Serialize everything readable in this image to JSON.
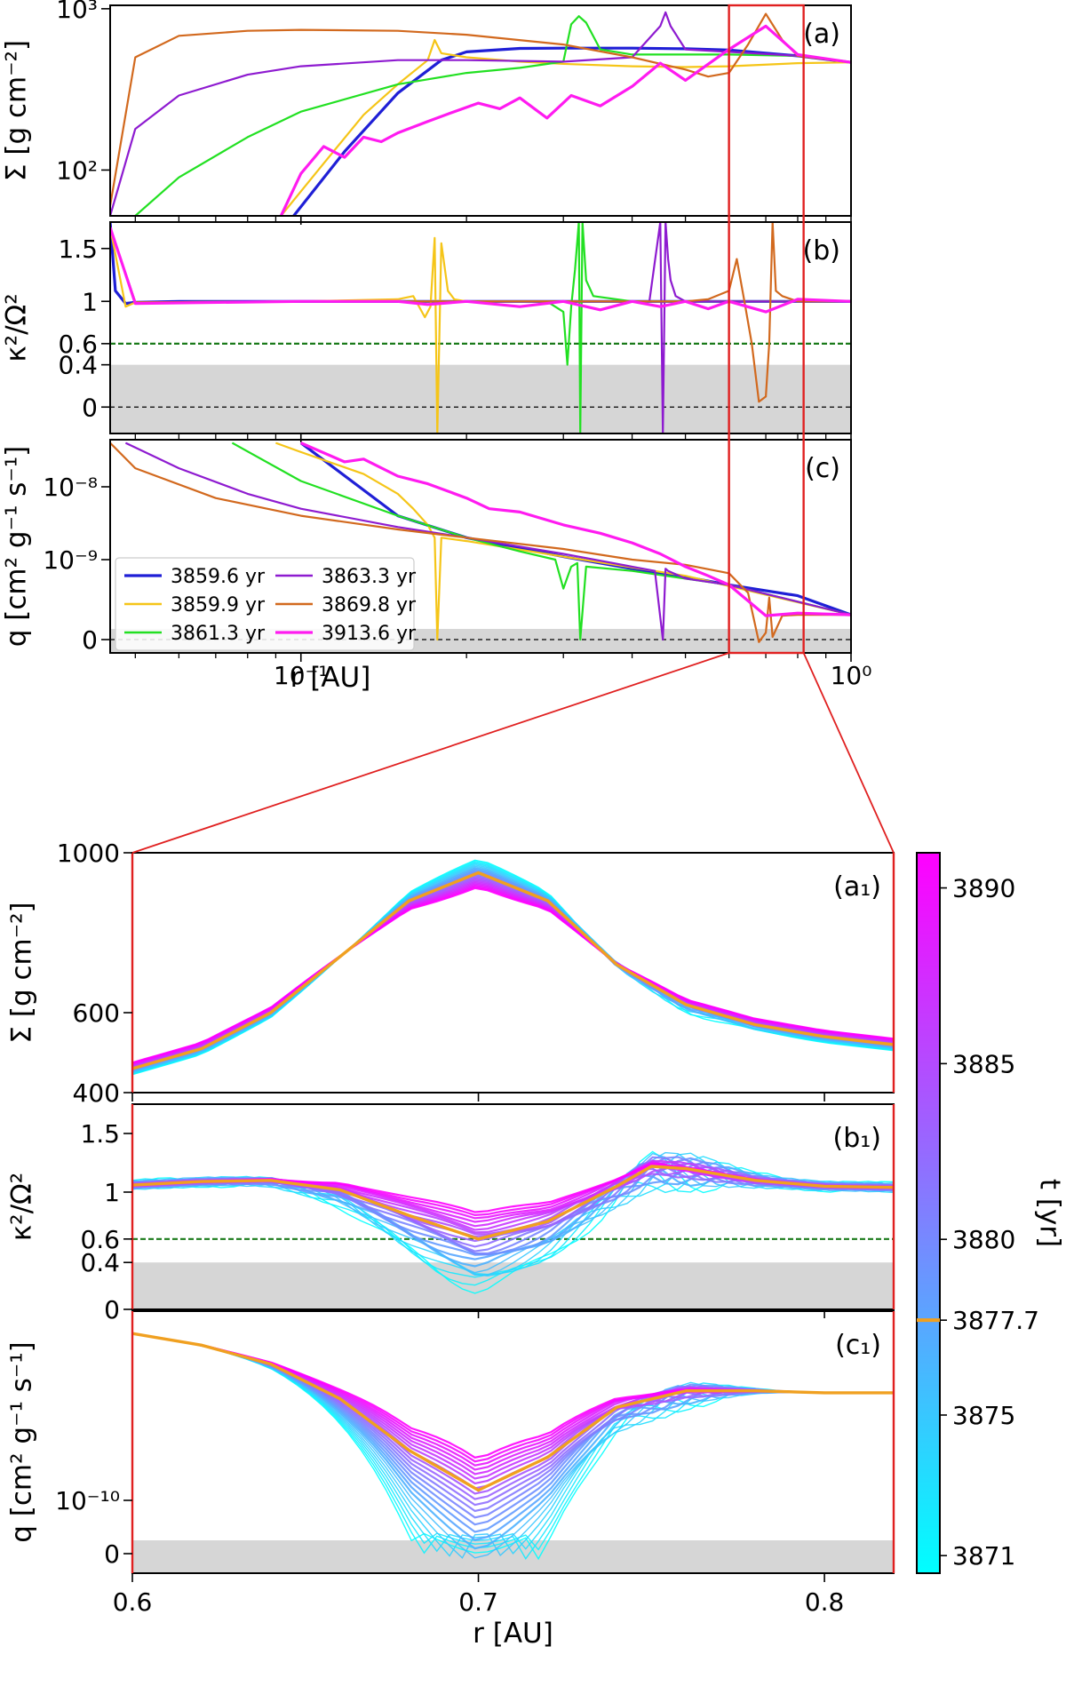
{
  "chart_data": [
    {
      "id": "a",
      "type": "line",
      "panel_label": "(a)",
      "ylabel": "Σ [g cm⁻²]",
      "yscale": "log",
      "xscale": "log",
      "xlim": [
        0.045,
        1.0
      ],
      "ylim": [
        52,
        1050
      ],
      "yticks": [
        {
          "value": 100,
          "label": "10²"
        },
        {
          "value": 1000,
          "label": "10³"
        }
      ],
      "series": [
        {
          "name": "3859.6 yr",
          "color": "#1f1fd6",
          "x": [
            0.097,
            0.12,
            0.15,
            0.18,
            0.2,
            0.25,
            0.3,
            0.4,
            0.5,
            0.6,
            0.8,
            1.0
          ],
          "y": [
            52,
            130,
            300,
            480,
            540,
            568,
            570,
            570,
            565,
            555,
            510,
            465
          ]
        },
        {
          "name": "3859.9 yr",
          "color": "#f5c518",
          "x": [
            0.092,
            0.11,
            0.13,
            0.15,
            0.17,
            0.175,
            0.18,
            0.2,
            0.25,
            0.3,
            0.4,
            0.5,
            0.6,
            0.8,
            1.0
          ],
          "y": [
            52,
            110,
            220,
            340,
            480,
            640,
            530,
            500,
            470,
            455,
            440,
            435,
            440,
            460,
            465
          ]
        },
        {
          "name": "3861.3 yr",
          "color": "#22e022",
          "x": [
            0.05,
            0.06,
            0.08,
            0.1,
            0.15,
            0.2,
            0.25,
            0.3,
            0.31,
            0.32,
            0.33,
            0.35,
            0.4,
            0.5,
            0.6,
            0.8,
            1.0
          ],
          "y": [
            52,
            90,
            160,
            230,
            340,
            400,
            430,
            470,
            800,
            900,
            820,
            560,
            520,
            520,
            520,
            510,
            465
          ]
        },
        {
          "name": "3863.3 yr",
          "color": "#8e1bd0",
          "x": [
            0.045,
            0.05,
            0.06,
            0.08,
            0.1,
            0.15,
            0.2,
            0.3,
            0.4,
            0.45,
            0.46,
            0.47,
            0.5,
            0.6,
            0.8,
            1.0
          ],
          "y": [
            52,
            180,
            290,
            390,
            440,
            480,
            480,
            470,
            500,
            780,
            950,
            780,
            560,
            540,
            510,
            465
          ]
        },
        {
          "name": "3869.8 yr",
          "color": "#d2691e",
          "x": [
            0.045,
            0.05,
            0.06,
            0.08,
            0.1,
            0.15,
            0.2,
            0.3,
            0.4,
            0.5,
            0.55,
            0.6,
            0.65,
            0.7,
            0.75,
            0.8,
            1.0
          ],
          "y": [
            60,
            500,
            680,
            730,
            740,
            730,
            690,
            600,
            500,
            420,
            380,
            400,
            600,
            930,
            640,
            510,
            465
          ]
        },
        {
          "name": "3913.6 yr",
          "color": "#ff1bf0",
          "x": [
            0.092,
            0.1,
            0.11,
            0.12,
            0.13,
            0.14,
            0.15,
            0.17,
            0.19,
            0.21,
            0.23,
            0.25,
            0.28,
            0.31,
            0.35,
            0.4,
            0.45,
            0.5,
            0.6,
            0.7,
            0.8,
            1.0
          ],
          "y": [
            52,
            95,
            140,
            120,
            160,
            150,
            170,
            200,
            230,
            260,
            240,
            280,
            210,
            290,
            250,
            330,
            460,
            360,
            560,
            780,
            520,
            465
          ]
        }
      ]
    },
    {
      "id": "b",
      "type": "line",
      "panel_label": "(b)",
      "ylabel": "κ²/Ω²",
      "xscale": "log",
      "xlim": [
        0.045,
        1.0
      ],
      "ylim": [
        -0.25,
        1.75
      ],
      "yticks": [
        {
          "value": 0,
          "label": "0"
        },
        {
          "value": 0.4,
          "label": "0.4"
        },
        {
          "value": 0.6,
          "label": "0.6"
        },
        {
          "value": 1,
          "label": "1"
        },
        {
          "value": 1.5,
          "label": "1.5"
        }
      ],
      "reference_line": 0.6,
      "shaded_below": 0.4,
      "series": [
        {
          "name": "3859.6 yr",
          "color": "#1f1fd6",
          "x": [
            0.045,
            0.046,
            0.048,
            0.05,
            0.06,
            0.1,
            0.2,
            0.4,
            0.6,
            1.0
          ],
          "y": [
            1.75,
            1.1,
            0.98,
            0.99,
            1.0,
            1.0,
            1.0,
            1.0,
            1.0,
            1.0
          ]
        },
        {
          "name": "3859.9 yr",
          "color": "#f5c518",
          "x": [
            0.045,
            0.048,
            0.05,
            0.1,
            0.15,
            0.16,
            0.168,
            0.172,
            0.175,
            0.177,
            0.18,
            0.185,
            0.19,
            0.2,
            0.3,
            1.0
          ],
          "y": [
            1.7,
            0.95,
            0.99,
            1.0,
            1.02,
            1.05,
            0.85,
            0.95,
            1.6,
            -0.25,
            1.55,
            1.1,
            1.02,
            1.0,
            1.0,
            1.0
          ]
        },
        {
          "name": "3861.3 yr",
          "color": "#22e022",
          "x": [
            0.045,
            0.05,
            0.1,
            0.28,
            0.3,
            0.305,
            0.31,
            0.315,
            0.32,
            0.322,
            0.325,
            0.33,
            0.34,
            0.4,
            1.0
          ],
          "y": [
            1.7,
            0.99,
            1.0,
            1.0,
            0.9,
            0.4,
            0.95,
            1.3,
            1.75,
            -0.25,
            1.75,
            1.2,
            1.05,
            1.0,
            1.0
          ]
        },
        {
          "name": "3863.3 yr",
          "color": "#8e1bd0",
          "x": [
            0.045,
            0.05,
            0.1,
            0.4,
            0.43,
            0.45,
            0.455,
            0.46,
            0.465,
            0.47,
            0.48,
            0.5,
            0.55,
            1.0
          ],
          "y": [
            1.7,
            0.99,
            1.0,
            1.0,
            1.0,
            1.75,
            -0.25,
            1.75,
            1.4,
            1.2,
            1.05,
            1.0,
            1.0,
            1.0
          ]
        },
        {
          "name": "3869.8 yr",
          "color": "#d2691e",
          "x": [
            0.045,
            0.05,
            0.1,
            0.5,
            0.55,
            0.6,
            0.62,
            0.64,
            0.66,
            0.68,
            0.7,
            0.71,
            0.72,
            0.73,
            0.75,
            0.8,
            1.0
          ],
          "y": [
            1.7,
            0.99,
            1.0,
            1.0,
            1.02,
            1.1,
            1.4,
            1.0,
            0.6,
            0.05,
            0.1,
            0.6,
            1.75,
            1.1,
            1.05,
            1.0,
            1.0
          ]
        },
        {
          "name": "3913.6 yr",
          "color": "#ff1bf0",
          "x": [
            0.045,
            0.05,
            0.1,
            0.15,
            0.17,
            0.2,
            0.25,
            0.3,
            0.35,
            0.4,
            0.45,
            0.5,
            0.55,
            0.6,
            0.7,
            0.8,
            1.0
          ],
          "y": [
            1.7,
            0.98,
            1.0,
            1.0,
            0.97,
            1.0,
            0.95,
            1.0,
            0.92,
            1.0,
            0.95,
            1.0,
            0.93,
            1.0,
            0.9,
            1.02,
            1.0
          ]
        }
      ]
    },
    {
      "id": "c",
      "type": "line",
      "panel_label": "(c)",
      "ylabel": "q [cm² g⁻¹ s⁻¹]",
      "xlabel": "r [AU]",
      "xscale": "log",
      "xlim": [
        0.045,
        1.0
      ],
      "xticks": [
        {
          "value": 0.1,
          "label": "10⁻¹"
        },
        {
          "value": 1.0,
          "label": "10⁰"
        }
      ],
      "yticks": [
        {
          "value": 0,
          "label": "0"
        },
        {
          "value": 1e-09,
          "label": "10⁻⁹"
        },
        {
          "value": 1e-08,
          "label": "10⁻⁸"
        }
      ],
      "legend_position": "lower-left",
      "series": [
        {
          "name": "3859.6 yr",
          "color": "#1f1fd6",
          "x": [
            0.1,
            0.15,
            0.2,
            0.3,
            0.4,
            0.5,
            0.6,
            0.8,
            1.0
          ],
          "y": [
            4e-08,
            4e-09,
            2e-09,
            1.1e-09,
            7.5e-10,
            5.8e-10,
            4.5e-10,
            3.2e-10,
            2.6e-10
          ]
        },
        {
          "name": "3859.9 yr",
          "color": "#f5c518",
          "x": [
            0.09,
            0.1,
            0.13,
            0.15,
            0.16,
            0.17,
            0.175,
            0.177,
            0.18,
            0.2,
            0.3,
            0.5,
            1.0
          ],
          "y": [
            4e-08,
            3e-08,
            1.5e-08,
            8e-09,
            5e-09,
            3e-09,
            2e-09,
            0,
            2e-09,
            1.8e-09,
            1.1e-09,
            6e-10,
            2.6e-10
          ]
        },
        {
          "name": "3861.3 yr",
          "color": "#22e022",
          "x": [
            0.075,
            0.1,
            0.15,
            0.2,
            0.25,
            0.29,
            0.3,
            0.31,
            0.318,
            0.322,
            0.33,
            0.4,
            0.6,
            1.0
          ],
          "y": [
            4e-08,
            1.2e-08,
            4e-09,
            2e-09,
            1.3e-09,
            1e-09,
            4e-10,
            8e-10,
            9e-10,
            0,
            8e-10,
            7e-10,
            4.5e-10,
            2.6e-10
          ]
        },
        {
          "name": "3863.3 yr",
          "color": "#8e1bd0",
          "x": [
            0.048,
            0.06,
            0.08,
            0.1,
            0.15,
            0.2,
            0.3,
            0.4,
            0.44,
            0.455,
            0.46,
            0.465,
            0.5,
            0.6,
            1.0
          ],
          "y": [
            4e-08,
            1.8e-08,
            8e-09,
            5e-09,
            2.8e-09,
            2e-09,
            1.2e-09,
            8e-10,
            7e-10,
            0,
            7.5e-10,
            7e-10,
            5.5e-10,
            4.5e-10,
            2.6e-10
          ]
        },
        {
          "name": "3869.8 yr",
          "color": "#d2691e",
          "x": [
            0.045,
            0.05,
            0.07,
            0.1,
            0.15,
            0.2,
            0.3,
            0.4,
            0.5,
            0.6,
            0.65,
            0.68,
            0.7,
            0.71,
            0.72,
            0.75,
            0.8,
            1.0
          ],
          "y": [
            4e-08,
            1.8e-08,
            7e-09,
            4e-09,
            2.6e-09,
            2e-09,
            1.4e-09,
            1e-09,
            8.5e-10,
            6.5e-10,
            3.5e-10,
            8e-11,
            1.2e-10,
            3e-10,
            1e-10,
            2.5e-10,
            2.6e-10,
            2.6e-10
          ]
        },
        {
          "name": "3913.6 yr",
          "color": "#ff1bf0",
          "x": [
            0.1,
            0.12,
            0.13,
            0.15,
            0.17,
            0.2,
            0.22,
            0.25,
            0.3,
            0.35,
            0.4,
            0.45,
            0.5,
            0.55,
            0.6,
            0.7,
            0.8,
            1.0
          ],
          "y": [
            4e-08,
            2.2e-08,
            2.4e-08,
            1.4e-08,
            1.1e-08,
            7e-09,
            5e-09,
            4.5e-09,
            3e-09,
            2.3e-09,
            1.7e-09,
            1.2e-09,
            8e-10,
            6e-10,
            4.5e-10,
            2.5e-10,
            2.8e-10,
            2.6e-10
          ]
        }
      ]
    },
    {
      "id": "a1",
      "type": "line",
      "panel_label": "(a₁)",
      "ylabel": "Σ [g cm⁻²]",
      "xlim": [
        0.6,
        0.82
      ],
      "ylim": [
        400,
        1000
      ],
      "yticks": [
        {
          "value": 400,
          "label": "400"
        },
        {
          "value": 600,
          "label": "600"
        },
        {
          "value": 1000,
          "label": "1000"
        }
      ],
      "highlight_series": {
        "name": "3877.7",
        "color": "#f0a020",
        "x": [
          0.6,
          0.62,
          0.64,
          0.66,
          0.68,
          0.7,
          0.72,
          0.74,
          0.76,
          0.78,
          0.8,
          0.82
        ],
        "y": [
          460,
          510,
          600,
          740,
          880,
          950,
          880,
          720,
          620,
          570,
          540,
          520
        ]
      },
      "color_range": {
        "tmin": 3871,
        "tmax": 3890
      }
    },
    {
      "id": "b1",
      "type": "line",
      "panel_label": "(b₁)",
      "ylabel": "κ²/Ω²",
      "xlim": [
        0.6,
        0.82
      ],
      "ylim": [
        0,
        1.75
      ],
      "yticks": [
        {
          "value": 0,
          "label": "0"
        },
        {
          "value": 0.4,
          "label": "0.4"
        },
        {
          "value": 0.6,
          "label": "0.6"
        },
        {
          "value": 1,
          "label": "1"
        },
        {
          "value": 1.5,
          "label": "1.5"
        }
      ],
      "reference_line": 0.6,
      "shaded_below": 0.4,
      "highlight_series": {
        "name": "3877.7",
        "color": "#f0a020",
        "x": [
          0.6,
          0.62,
          0.64,
          0.66,
          0.68,
          0.7,
          0.72,
          0.74,
          0.75,
          0.76,
          0.78,
          0.8,
          0.82
        ],
        "y": [
          1.06,
          1.09,
          1.1,
          1.02,
          0.8,
          0.6,
          0.75,
          1.05,
          1.22,
          1.2,
          1.1,
          1.05,
          1.04
        ]
      }
    },
    {
      "id": "c1",
      "type": "line",
      "panel_label": "(c₁)",
      "ylabel": "q [cm² g⁻¹ s⁻¹]",
      "xlabel": "r [AU]",
      "xlim": [
        0.6,
        0.82
      ],
      "xticks": [
        {
          "value": 0.6,
          "label": "0.6"
        },
        {
          "value": 0.7,
          "label": "0.7"
        },
        {
          "value": 0.8,
          "label": "0.8"
        }
      ],
      "yticks": [
        {
          "value": 0,
          "label": "0"
        },
        {
          "value": 1e-10,
          "label": "10⁻¹⁰"
        }
      ],
      "highlight_series": {
        "name": "3877.7",
        "color": "#f0a020",
        "x": [
          0.6,
          0.62,
          0.64,
          0.66,
          0.68,
          0.7,
          0.72,
          0.74,
          0.76,
          0.78,
          0.8,
          0.82
        ],
        "y": [
          4.8e-10,
          4.3e-10,
          3.6e-10,
          2.6e-10,
          1.6e-10,
          1.1e-10,
          1.5e-10,
          2.4e-10,
          2.8e-10,
          2.8e-10,
          2.75e-10,
          2.75e-10
        ]
      }
    },
    {
      "id": "colorbar",
      "type": "colorbar",
      "label": "t [yr]",
      "ticks": [
        {
          "value": 3871,
          "label": "3871"
        },
        {
          "value": 3875,
          "label": "3875"
        },
        {
          "value": 3877.7,
          "label": "3877.7"
        },
        {
          "value": 3880,
          "label": "3880"
        },
        {
          "value": 3885,
          "label": "3885"
        },
        {
          "value": 3890,
          "label": "3890"
        }
      ],
      "range": [
        3870.5,
        3891
      ],
      "colors": [
        "#00ffff",
        "#ff00ff"
      ],
      "highlight_value": 3877.7,
      "highlight_color": "#f0a020"
    }
  ]
}
